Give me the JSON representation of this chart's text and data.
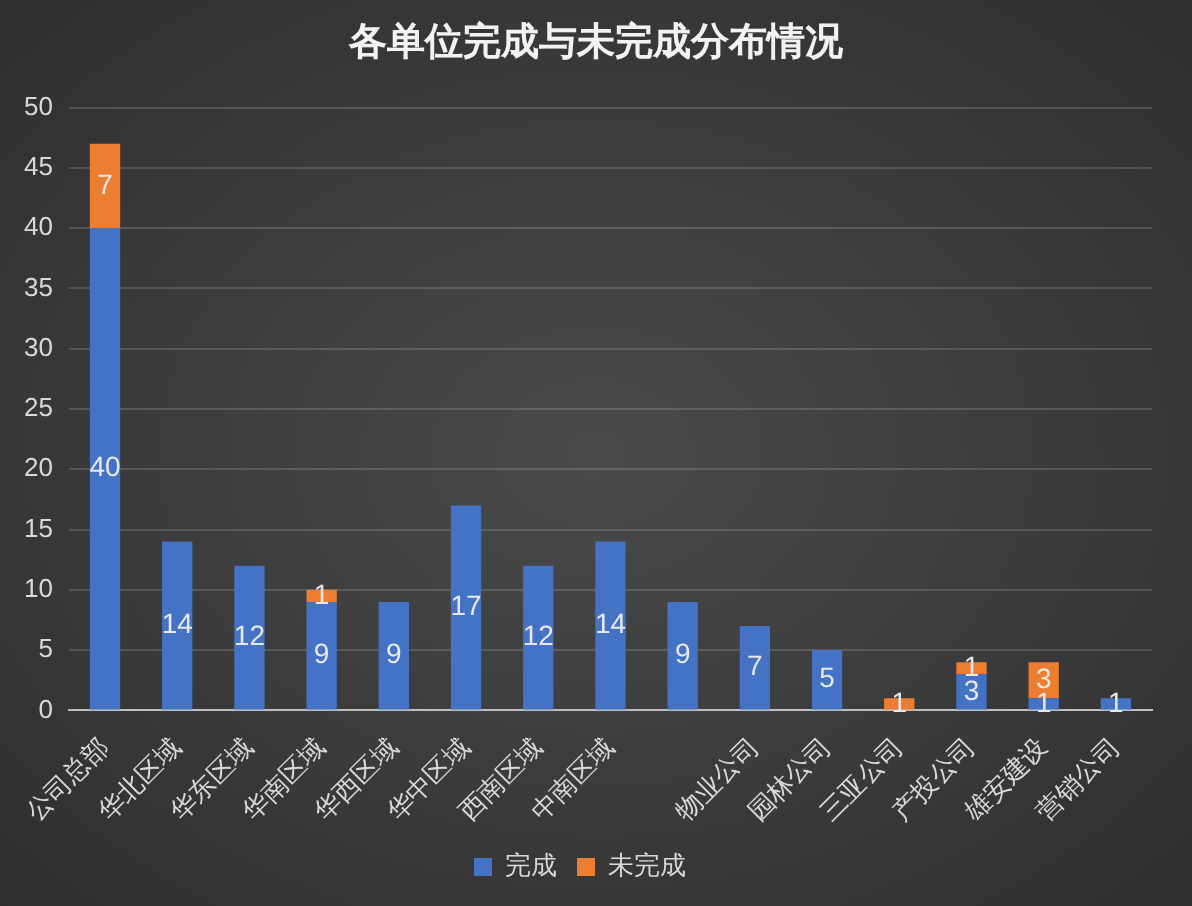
{
  "chart_data": {
    "type": "bar",
    "title": "各单位完成与未完成分布情况",
    "categories": [
      "公司总部",
      "华北区域",
      "华东区域",
      "华南区域",
      "华西区域",
      "华中区域",
      "西南区域",
      "中南区域",
      null,
      "物业公司",
      "园林公司",
      "三亚公司",
      "产投公司",
      "雄安建设",
      "营销公司"
    ],
    "series": [
      {
        "name": "完成",
        "color": "#4472c4",
        "values": [
          40,
          14,
          12,
          9,
          9,
          17,
          12,
          14,
          9,
          7,
          5,
          null,
          3,
          1,
          1
        ]
      },
      {
        "name": "未完成",
        "color": "#ed7d31",
        "values": [
          7,
          null,
          null,
          1,
          null,
          null,
          null,
          null,
          null,
          null,
          null,
          1,
          1,
          3,
          null
        ]
      }
    ],
    "stacked": true,
    "ylim": [
      0,
      50
    ],
    "yticks": [
      0,
      5,
      10,
      15,
      20,
      25,
      30,
      35,
      40,
      45,
      50
    ],
    "grid": "y",
    "legend": "bottom",
    "data_labels": true
  }
}
